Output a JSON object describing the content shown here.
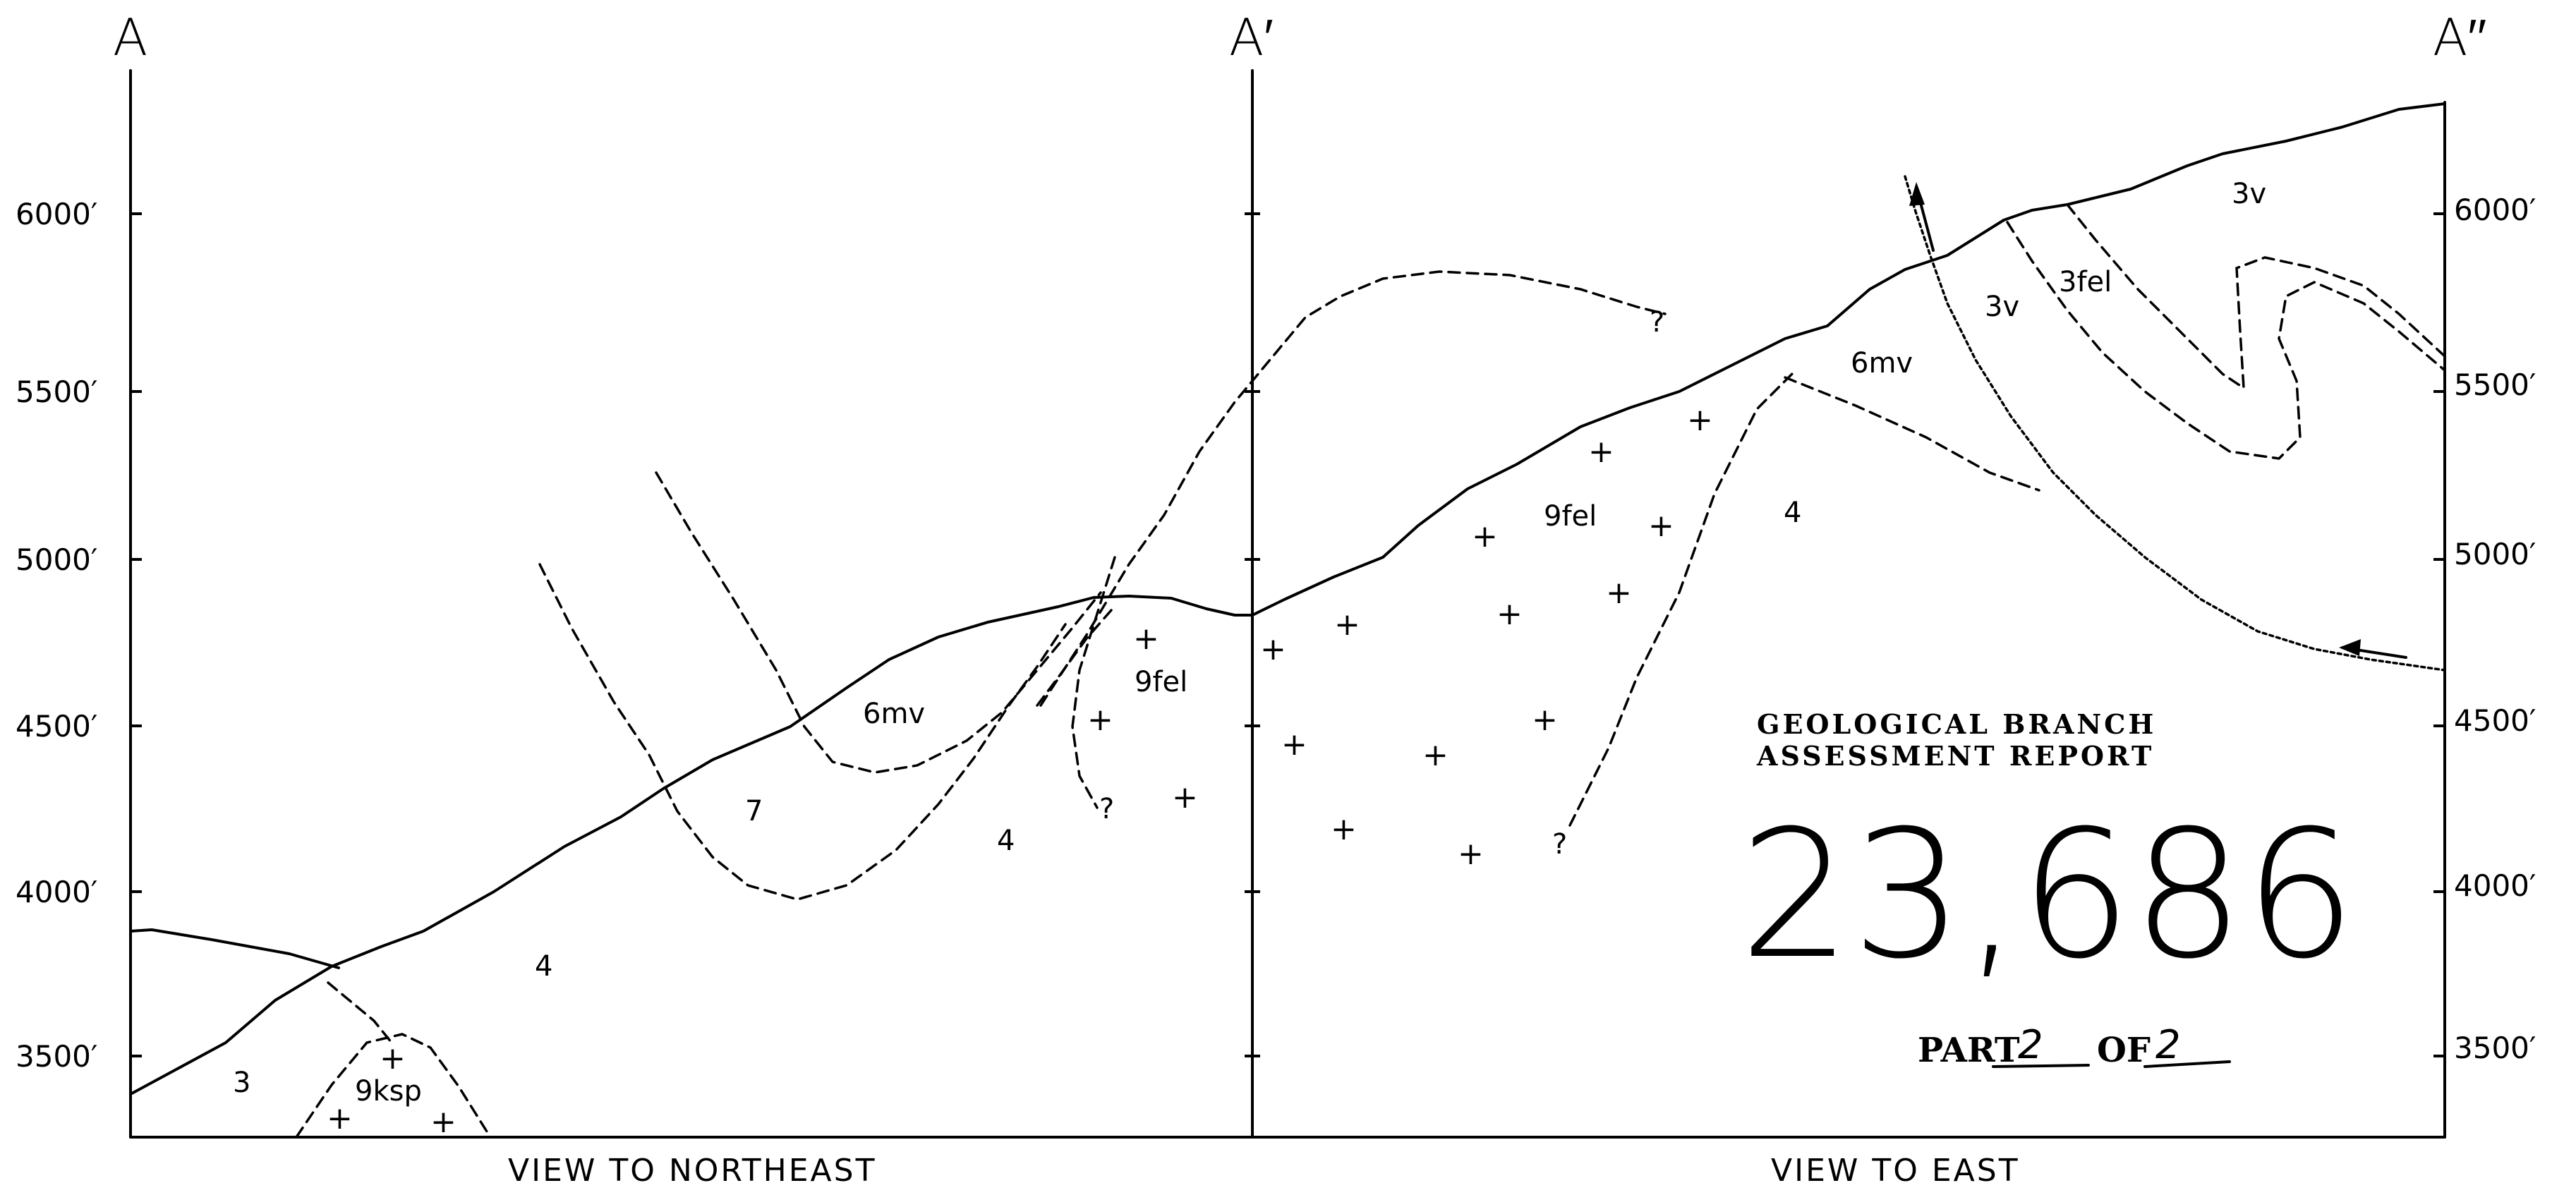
{
  "sections": {
    "a": "A",
    "a_prime": "A′",
    "a_double_prime": "A′′"
  },
  "elevations_left": [
    "6000′",
    "5500′",
    "5000′",
    "4500′",
    "4000′",
    "3500′"
  ],
  "elevations_right": [
    "6000′",
    "5500′",
    "5000′",
    "4500′",
    "4000′",
    "3500′"
  ],
  "views": {
    "left": "VIEW TO NORTHEAST",
    "right": "VIEW TO EAST"
  },
  "units": {
    "left": [
      {
        "id": "u3",
        "label": "3"
      },
      {
        "id": "u9ksp",
        "label": "9ksp"
      },
      {
        "id": "u4a",
        "label": "4"
      },
      {
        "id": "u7",
        "label": "7"
      },
      {
        "id": "u6mv_left",
        "label": "6mv"
      },
      {
        "id": "u4b",
        "label": "4"
      },
      {
        "id": "u9fel_left",
        "label": "9fel"
      },
      {
        "id": "q1",
        "label": "?"
      }
    ],
    "right": [
      {
        "id": "u9fel_right",
        "label": "9fel"
      },
      {
        "id": "u4c",
        "label": "4"
      },
      {
        "id": "u6mv_right",
        "label": "6mv"
      },
      {
        "id": "u3v_a",
        "label": "3v"
      },
      {
        "id": "u3fel",
        "label": "3fel"
      },
      {
        "id": "u3v_b",
        "label": "3v"
      },
      {
        "id": "q2",
        "label": "?"
      },
      {
        "id": "q3",
        "label": "?"
      }
    ]
  },
  "stamp": {
    "line1": "GEOLOGICAL BRANCH",
    "line2": "ASSESSMENT REPORT",
    "number": "23,686",
    "part_label": "PART",
    "part_num": "2",
    "of_label": "OF",
    "of_num": "2"
  },
  "icons": {
    "intrusive_symbol": "plus-mark",
    "movement_arrow": "arrow-icon"
  }
}
